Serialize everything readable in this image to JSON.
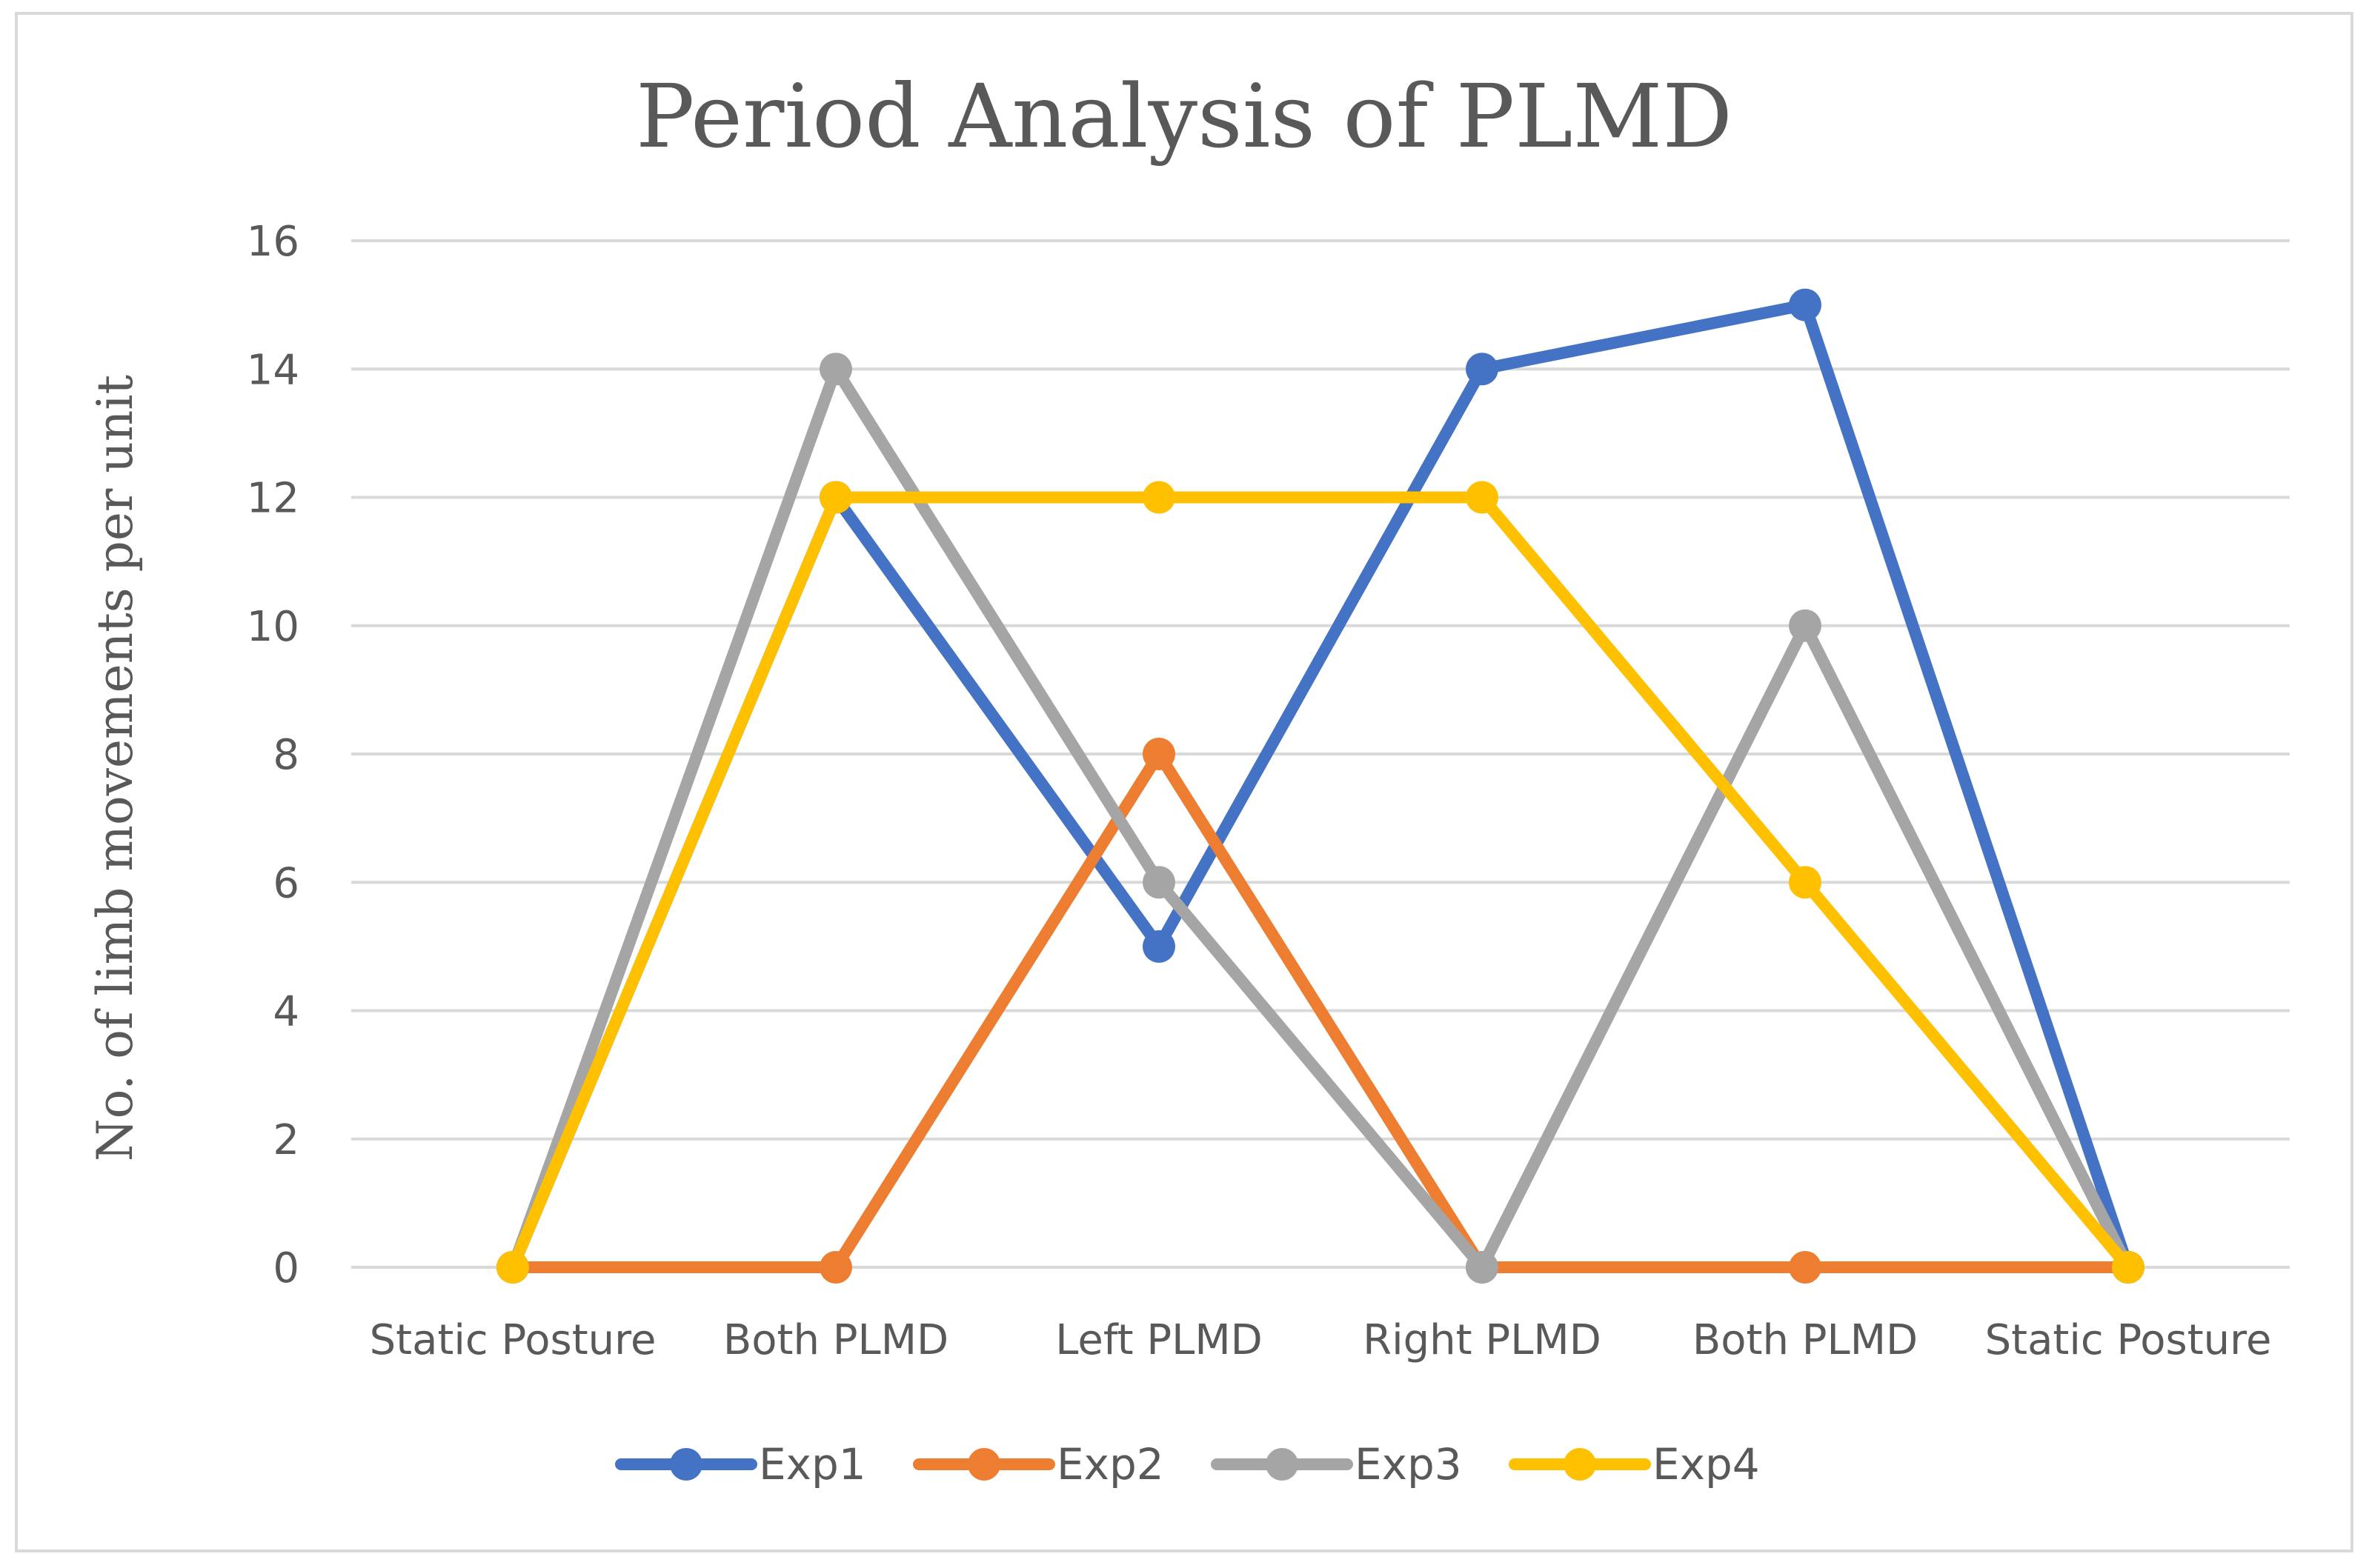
{
  "chart_data": {
    "type": "line",
    "title": "Period Analysis of PLMD",
    "xlabel": "",
    "ylabel": "No. of limb movements per unit",
    "categories": [
      "Static Posture",
      "Both PLMD",
      "Left PLMD",
      "Right PLMD",
      "Both PLMD",
      "Static Posture"
    ],
    "ylim": [
      0,
      16
    ],
    "yticks": [
      "0",
      "2",
      "4",
      "6",
      "8",
      "10",
      "12",
      "14",
      "16"
    ],
    "grid": true,
    "legend_position": "bottom",
    "series": [
      {
        "name": "Exp1",
        "color": "#4472C4",
        "values": [
          0,
          12,
          5,
          14,
          15,
          0
        ]
      },
      {
        "name": "Exp2",
        "color": "#ED7D31",
        "values": [
          0,
          0,
          8,
          0,
          0,
          0
        ]
      },
      {
        "name": "Exp3",
        "color": "#A5A5A5",
        "values": [
          0,
          14,
          6,
          0,
          10,
          0
        ]
      },
      {
        "name": "Exp4",
        "color": "#FFC000",
        "values": [
          0,
          12,
          12,
          12,
          6,
          0
        ]
      }
    ]
  }
}
